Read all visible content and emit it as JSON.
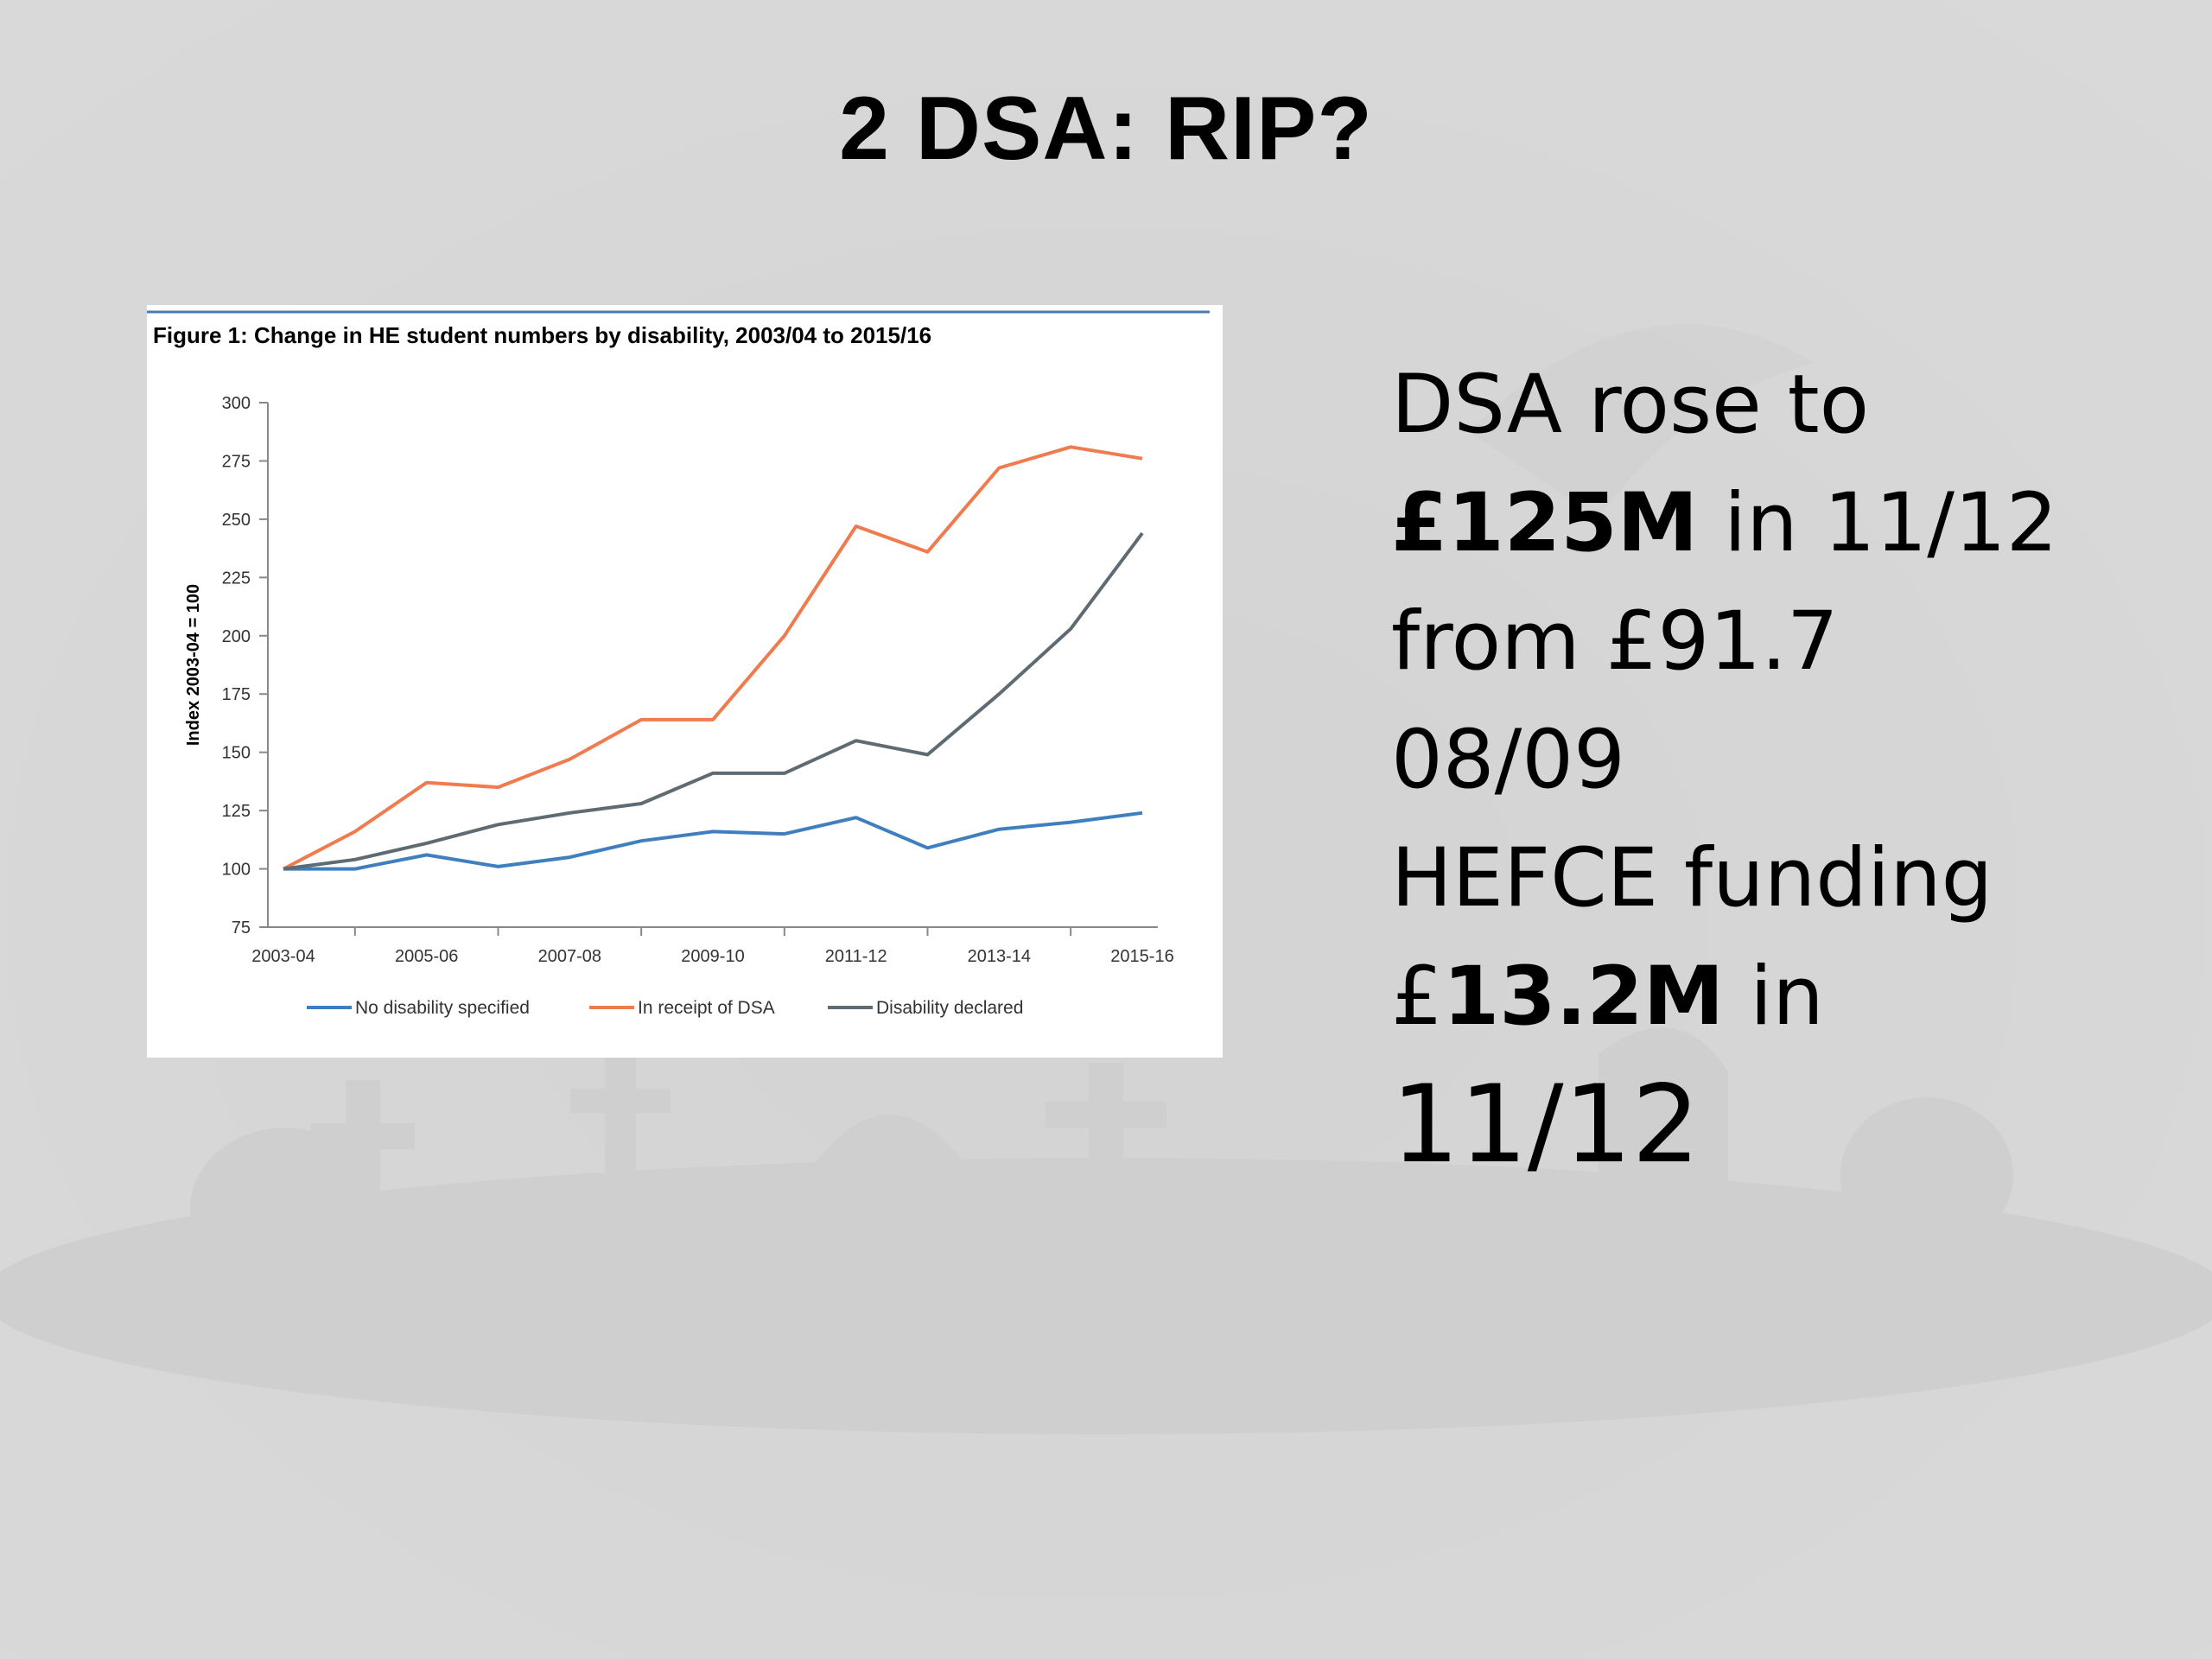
{
  "slide": {
    "title": "2  DSA: RIP?"
  },
  "side_text": {
    "line1": "DSA rose to",
    "line2_bold": "£125M",
    "line2_rest": " in 11/12",
    "line3": "from  £91.7",
    "line4": "08/09",
    "line5": "HEFCE funding",
    "line6_plain": "£",
    "line6_bold": "13.2M",
    "line6_rest": " in",
    "line7": "11/12"
  },
  "colors": {
    "background": "#d6d6d6",
    "no_disability": "#3f7fbf",
    "dsa": "#f07b4f",
    "declared": "#5f6b73"
  },
  "chart_data": {
    "type": "line",
    "title": "Figure 1: Change in HE student numbers by disability, 2003/04 to 2015/16",
    "ylabel": "Index 2003-04 = 100",
    "xlabel": "",
    "ylim": [
      75,
      300
    ],
    "yticks": [
      75,
      100,
      125,
      150,
      175,
      200,
      225,
      250,
      275,
      300
    ],
    "x_tick_labels": [
      "2003-04",
      "2005-06",
      "2007-08",
      "2009-10",
      "2011-12",
      "2013-14",
      "2015-16"
    ],
    "x": [
      "2003-04",
      "2004-05",
      "2005-06",
      "2006-07",
      "2007-08",
      "2008-09",
      "2009-10",
      "2010-11",
      "2011-12",
      "2012-13",
      "2013-14",
      "2014-15",
      "2015-16"
    ],
    "series": [
      {
        "name": "No disability specified",
        "color": "#3f7fbf",
        "values": [
          100,
          100,
          106,
          101,
          105,
          112,
          116,
          115,
          122,
          109,
          117,
          120,
          124
        ]
      },
      {
        "name": "In receipt of DSA",
        "color": "#f07b4f",
        "values": [
          100,
          116,
          137,
          135,
          147,
          164,
          164,
          200,
          247,
          236,
          272,
          281,
          276
        ]
      },
      {
        "name": "Disability declared",
        "color": "#5f6b73",
        "values": [
          100,
          104,
          111,
          119,
          124,
          128,
          141,
          141,
          155,
          149,
          175,
          203,
          244
        ]
      }
    ],
    "grid": false,
    "legend_position": "bottom"
  }
}
